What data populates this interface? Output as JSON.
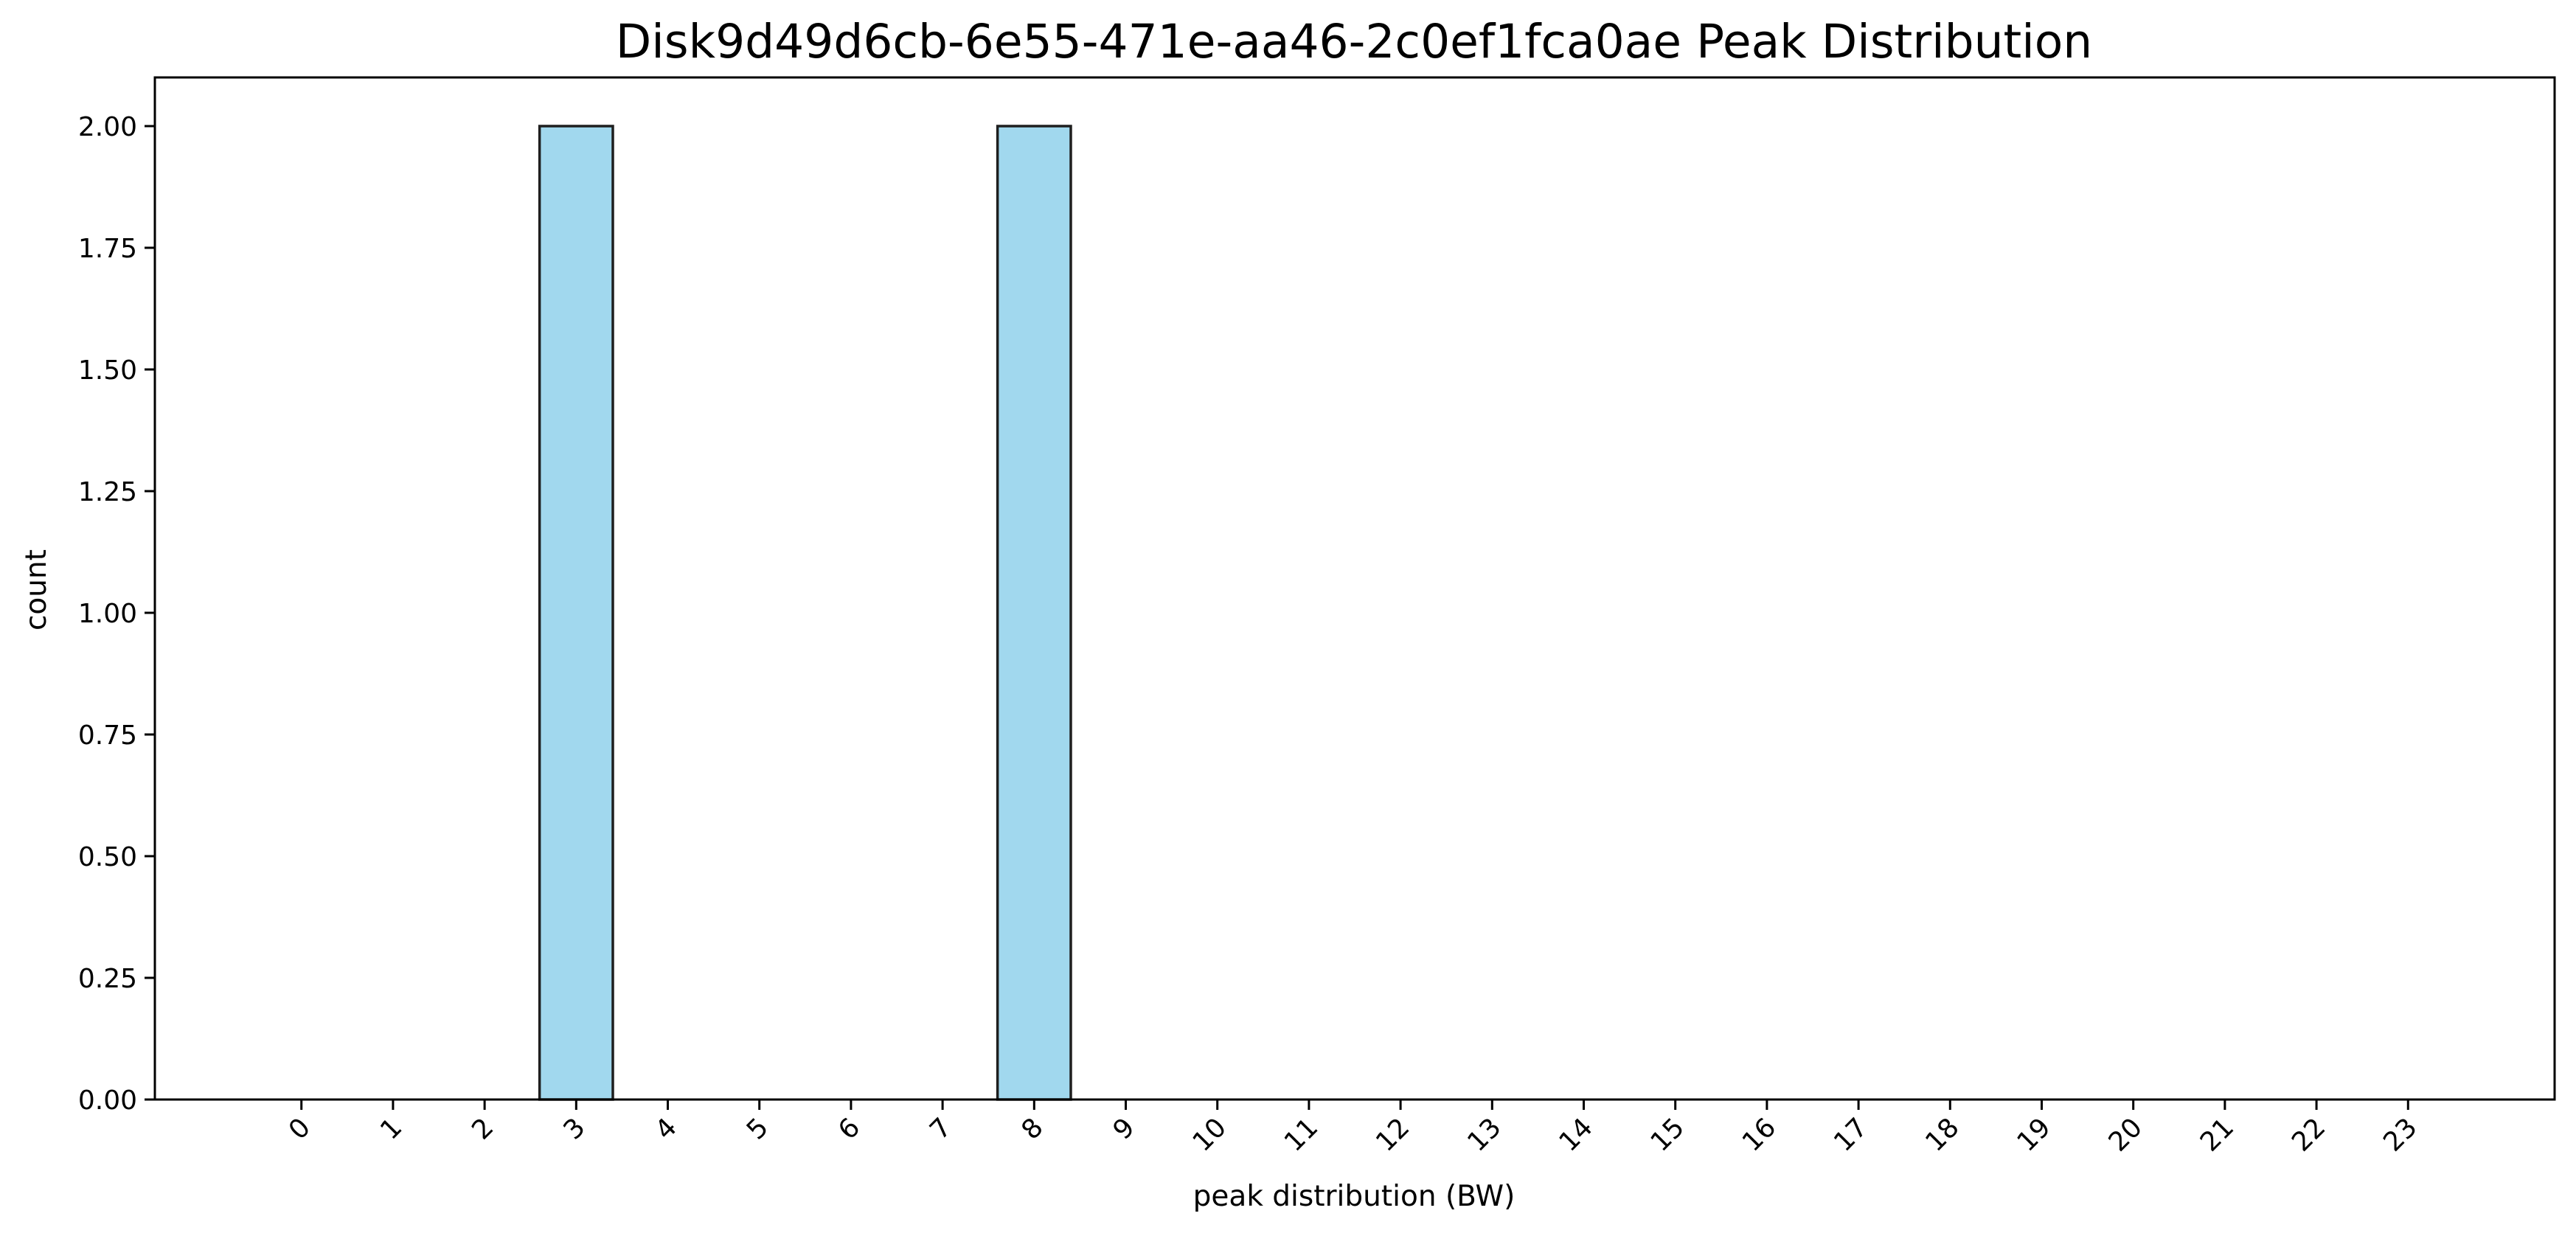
{
  "chart_data": {
    "type": "bar",
    "title": "Disk9d49d6cb-6e55-471e-aa46-2c0ef1fca0ae Peak Distribution",
    "xlabel": "peak distribution (BW)",
    "ylabel": "count",
    "categories": [
      "0",
      "1",
      "2",
      "3",
      "4",
      "5",
      "6",
      "7",
      "8",
      "9",
      "10",
      "11",
      "12",
      "13",
      "14",
      "15",
      "16",
      "17",
      "18",
      "19",
      "20",
      "21",
      "22",
      "23"
    ],
    "values": [
      0,
      0,
      0,
      2,
      0,
      0,
      0,
      0,
      2,
      0,
      0,
      0,
      0,
      0,
      0,
      0,
      0,
      0,
      0,
      0,
      0,
      0,
      0,
      0
    ],
    "ylim": [
      0,
      2.1
    ],
    "yticks": [
      "0.00",
      "0.25",
      "0.50",
      "0.75",
      "1.00",
      "1.25",
      "1.50",
      "1.75",
      "2.00"
    ],
    "grid": false,
    "bar_color": "#a1d8ee",
    "bar_edge_color": "#1f1f1f"
  }
}
